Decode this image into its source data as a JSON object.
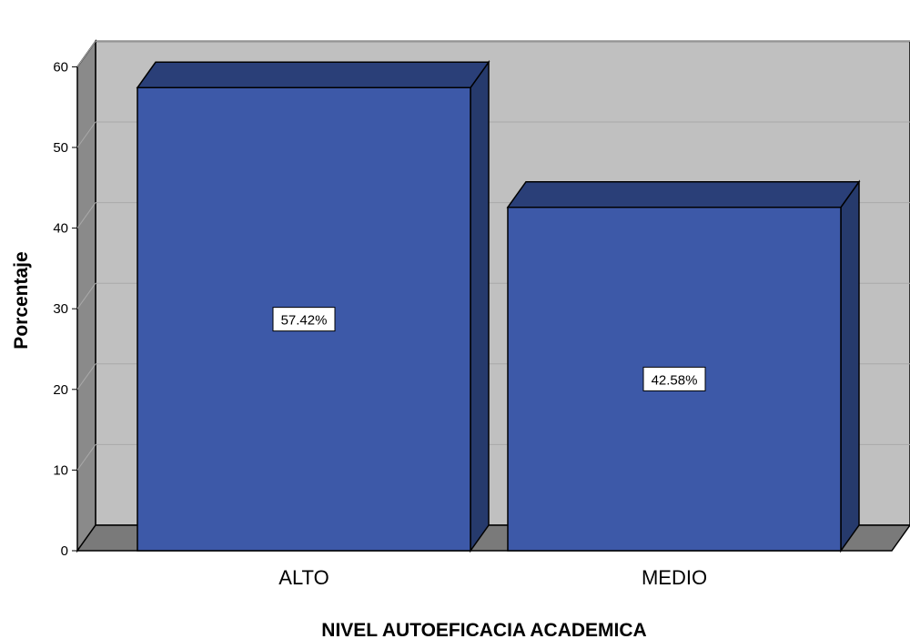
{
  "chart_data": {
    "type": "bar",
    "categories": [
      "ALTO",
      "MEDIO"
    ],
    "values": [
      57.42,
      42.58
    ],
    "data_labels": [
      "57.42%",
      "42.58%"
    ],
    "xlabel": "NIVEL AUTOEFICACIA ACADEMICA",
    "ylabel": "Porcentaje",
    "ylim": [
      0,
      60
    ],
    "yticks": [
      "0",
      "10",
      "20",
      "30",
      "40",
      "50",
      "60"
    ],
    "grid": true,
    "style": "3d",
    "colors": {
      "bar_front": "#3d59a8",
      "bar_side": "#263a6c",
      "bar_top": "#2a3f78",
      "plot_back": "#c0c0c0",
      "plot_floor": "#7a7a7a",
      "plot_wall": "#8a8a8a",
      "grid": "#a9a9a9"
    }
  }
}
